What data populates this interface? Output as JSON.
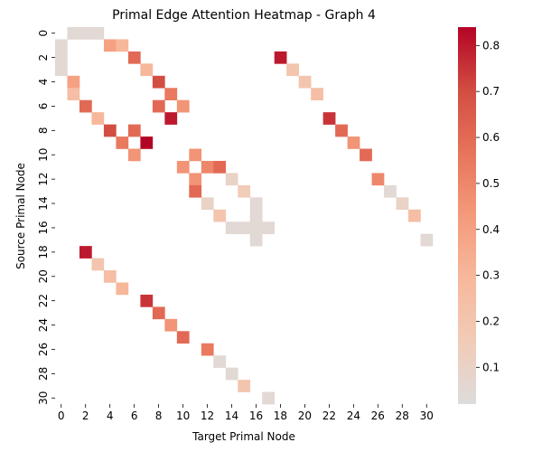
{
  "chart_data": {
    "type": "heatmap",
    "title": "Primal Edge Attention Heatmap - Graph 4",
    "xlabel": "Target Primal Node",
    "ylabel": "Source Primal Node",
    "rows": 31,
    "cols": 31,
    "x_tick_labels": [
      "0",
      "2",
      "4",
      "6",
      "8",
      "10",
      "12",
      "14",
      "16",
      "18",
      "20",
      "22",
      "24",
      "26",
      "28",
      "30"
    ],
    "y_tick_labels": [
      "0",
      "2",
      "4",
      "6",
      "8",
      "10",
      "12",
      "14",
      "16",
      "18",
      "20",
      "22",
      "24",
      "26",
      "28",
      "30"
    ],
    "colorbar": {
      "range": [
        0.02,
        0.84
      ],
      "ticks": [
        0.1,
        0.2,
        0.3,
        0.4,
        0.5,
        0.6,
        0.7,
        0.8
      ],
      "tick_labels": [
        "0.1",
        "0.2",
        "0.3",
        "0.4",
        "0.5",
        "0.6",
        "0.7",
        "0.8"
      ],
      "colormap": "coolwarm-upper",
      "stops": [
        "#dddcdc",
        "#f2cbb7",
        "#f7b89c",
        "#f49a7b",
        "#e7745b",
        "#d24d41",
        "#b40426"
      ]
    },
    "cells": [
      {
        "r": 0,
        "c": 1,
        "v": 0.05
      },
      {
        "r": 0,
        "c": 2,
        "v": 0.05
      },
      {
        "r": 0,
        "c": 3,
        "v": 0.05
      },
      {
        "r": 1,
        "c": 0,
        "v": 0.05
      },
      {
        "r": 1,
        "c": 4,
        "v": 0.4
      },
      {
        "r": 1,
        "c": 5,
        "v": 0.3
      },
      {
        "r": 2,
        "c": 0,
        "v": 0.05
      },
      {
        "r": 2,
        "c": 6,
        "v": 0.6
      },
      {
        "r": 2,
        "c": 18,
        "v": 0.8
      },
      {
        "r": 3,
        "c": 0,
        "v": 0.05
      },
      {
        "r": 3,
        "c": 7,
        "v": 0.3
      },
      {
        "r": 3,
        "c": 19,
        "v": 0.2
      },
      {
        "r": 4,
        "c": 1,
        "v": 0.4
      },
      {
        "r": 4,
        "c": 8,
        "v": 0.7
      },
      {
        "r": 4,
        "c": 20,
        "v": 0.2
      },
      {
        "r": 5,
        "c": 1,
        "v": 0.25
      },
      {
        "r": 5,
        "c": 9,
        "v": 0.55
      },
      {
        "r": 5,
        "c": 21,
        "v": 0.25
      },
      {
        "r": 6,
        "c": 2,
        "v": 0.6
      },
      {
        "r": 6,
        "c": 8,
        "v": 0.6
      },
      {
        "r": 6,
        "c": 10,
        "v": 0.45
      },
      {
        "r": 7,
        "c": 3,
        "v": 0.3
      },
      {
        "r": 7,
        "c": 9,
        "v": 0.8
      },
      {
        "r": 7,
        "c": 22,
        "v": 0.75
      },
      {
        "r": 8,
        "c": 4,
        "v": 0.7
      },
      {
        "r": 8,
        "c": 6,
        "v": 0.6
      },
      {
        "r": 8,
        "c": 23,
        "v": 0.6
      },
      {
        "r": 9,
        "c": 5,
        "v": 0.55
      },
      {
        "r": 9,
        "c": 7,
        "v": 0.84
      },
      {
        "r": 9,
        "c": 24,
        "v": 0.45
      },
      {
        "r": 10,
        "c": 6,
        "v": 0.45
      },
      {
        "r": 10,
        "c": 11,
        "v": 0.45
      },
      {
        "r": 10,
        "c": 25,
        "v": 0.6
      },
      {
        "r": 11,
        "c": 10,
        "v": 0.45
      },
      {
        "r": 11,
        "c": 12,
        "v": 0.5
      },
      {
        "r": 11,
        "c": 13,
        "v": 0.6
      },
      {
        "r": 12,
        "c": 11,
        "v": 0.45
      },
      {
        "r": 12,
        "c": 14,
        "v": 0.1
      },
      {
        "r": 12,
        "c": 26,
        "v": 0.5
      },
      {
        "r": 13,
        "c": 11,
        "v": 0.6
      },
      {
        "r": 13,
        "c": 15,
        "v": 0.15
      },
      {
        "r": 13,
        "c": 27,
        "v": 0.05
      },
      {
        "r": 14,
        "c": 12,
        "v": 0.1
      },
      {
        "r": 14,
        "c": 16,
        "v": 0.05
      },
      {
        "r": 14,
        "c": 28,
        "v": 0.1
      },
      {
        "r": 15,
        "c": 13,
        "v": 0.2
      },
      {
        "r": 15,
        "c": 16,
        "v": 0.05
      },
      {
        "r": 15,
        "c": 29,
        "v": 0.25
      },
      {
        "r": 16,
        "c": 14,
        "v": 0.05
      },
      {
        "r": 16,
        "c": 15,
        "v": 0.05
      },
      {
        "r": 16,
        "c": 16,
        "v": 0.05
      },
      {
        "r": 16,
        "c": 17,
        "v": 0.05
      },
      {
        "r": 17,
        "c": 16,
        "v": 0.05
      },
      {
        "r": 17,
        "c": 30,
        "v": 0.05
      },
      {
        "r": 18,
        "c": 2,
        "v": 0.8
      },
      {
        "r": 19,
        "c": 3,
        "v": 0.2
      },
      {
        "r": 20,
        "c": 4,
        "v": 0.25
      },
      {
        "r": 21,
        "c": 5,
        "v": 0.3
      },
      {
        "r": 22,
        "c": 7,
        "v": 0.75
      },
      {
        "r": 23,
        "c": 8,
        "v": 0.6
      },
      {
        "r": 24,
        "c": 9,
        "v": 0.45
      },
      {
        "r": 25,
        "c": 10,
        "v": 0.6
      },
      {
        "r": 26,
        "c": 12,
        "v": 0.55
      },
      {
        "r": 27,
        "c": 13,
        "v": 0.05
      },
      {
        "r": 28,
        "c": 14,
        "v": 0.05
      },
      {
        "r": 29,
        "c": 15,
        "v": 0.2
      },
      {
        "r": 30,
        "c": 17,
        "v": 0.05
      }
    ]
  }
}
